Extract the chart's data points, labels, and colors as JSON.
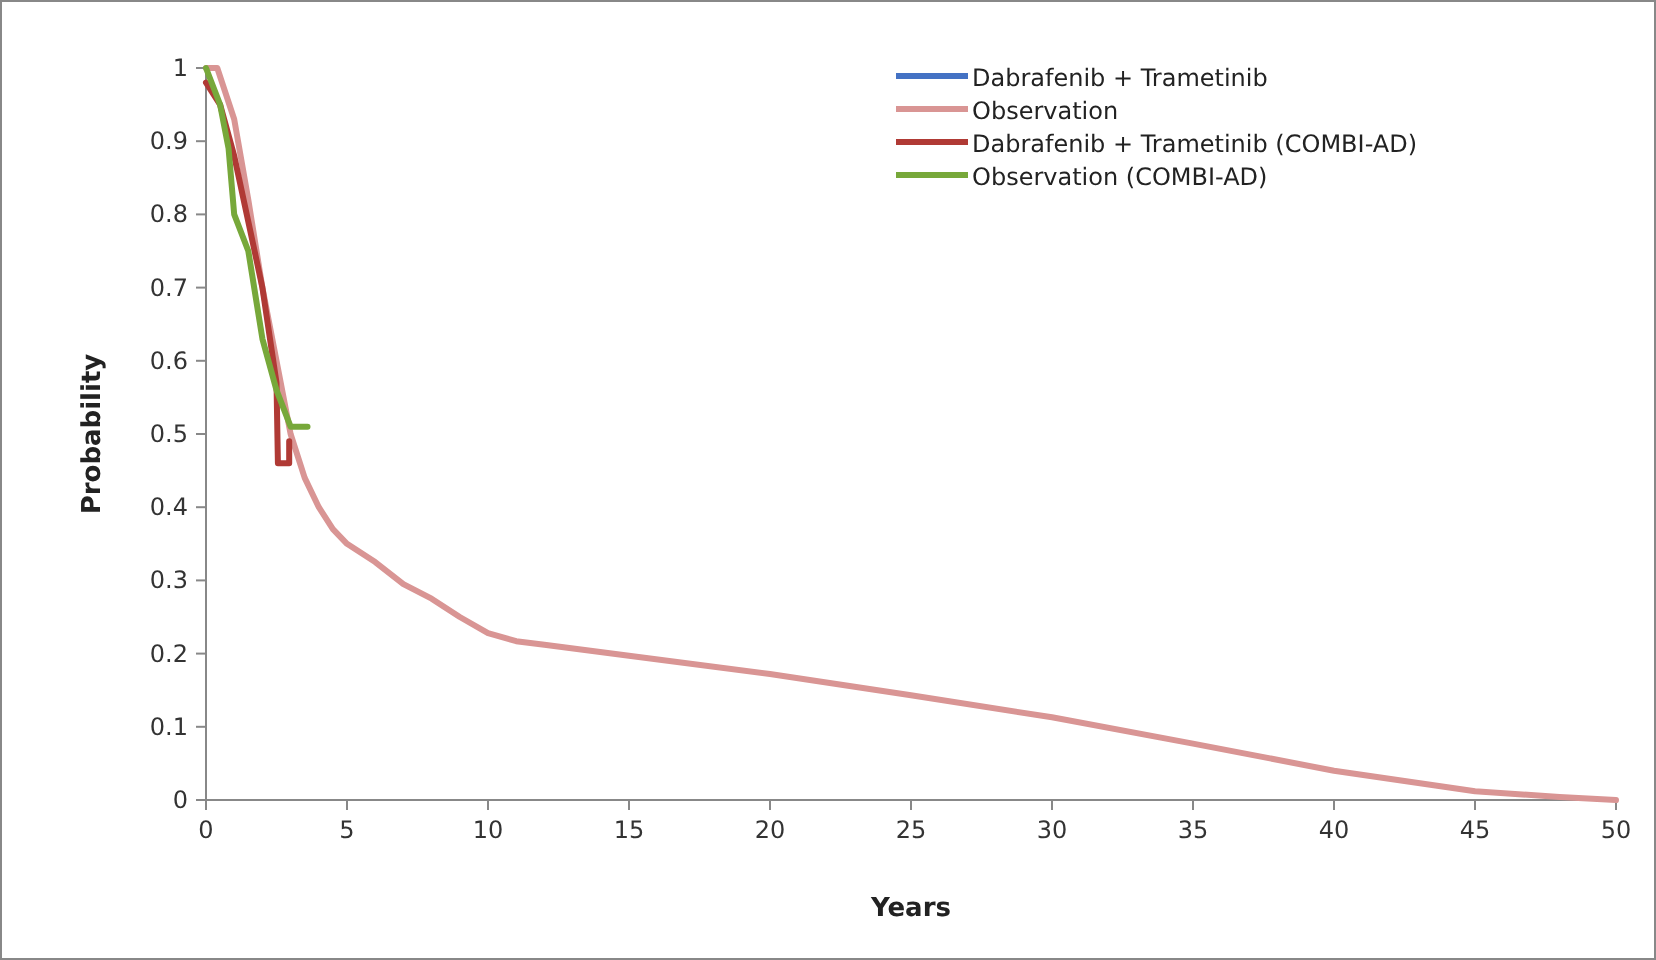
{
  "chart_data": {
    "type": "line",
    "xlabel": "Years",
    "ylabel": "Probability",
    "xlim": [
      0,
      50
    ],
    "ylim": [
      0,
      1
    ],
    "xticks": [
      0,
      5,
      10,
      15,
      20,
      25,
      30,
      35,
      40,
      45,
      50
    ],
    "yticks": [
      0,
      {
        "value": 0.1,
        "label": "0.1"
      },
      {
        "value": 0.2,
        "label": "0.2"
      },
      {
        "value": 0.3,
        "label": "0.3"
      },
      {
        "value": 0.4,
        "label": "0.4"
      },
      {
        "value": 0.5,
        "label": "0.5"
      },
      {
        "value": 0.6,
        "label": "0.6"
      },
      {
        "value": 0.7,
        "label": "0.7"
      },
      {
        "value": 0.8,
        "label": "0.8"
      },
      {
        "value": 0.9,
        "label": "0.9"
      },
      1
    ],
    "grid": false,
    "legend": "top right",
    "line_style": "solid",
    "series": [
      {
        "name": "Dabrafenib + Trametinib",
        "color": "#4472c4"
      },
      {
        "name": "Observation",
        "color": "#d99594",
        "x": [
          0,
          0.4,
          1,
          1.5,
          2,
          2.5,
          3,
          3.5,
          4,
          4.5,
          5,
          6,
          7,
          8,
          9,
          10,
          11,
          12,
          15,
          20,
          25,
          30,
          35,
          40,
          45,
          48,
          50
        ],
        "values": [
          1,
          1,
          0.93,
          0.82,
          0.7,
          0.6,
          0.5,
          0.44,
          0.4,
          0.37,
          0.35,
          0.325,
          0.295,
          0.275,
          0.25,
          0.228,
          0.217,
          0.212,
          0.197,
          0.172,
          0.143,
          0.113,
          0.077,
          0.04,
          0.012,
          0.004,
          0
        ]
      },
      {
        "name": "Dabrafenib + Trametinib (COMBI-AD)",
        "color": "#b03a35",
        "x": [
          0,
          0.5,
          1,
          1.5,
          2,
          2.5,
          2.55,
          2.95,
          2.95
        ],
        "values": [
          0.98,
          0.95,
          0.88,
          0.79,
          0.7,
          0.57,
          0.46,
          0.46,
          0.49
        ]
      },
      {
        "name": "Observation (COMBI-AD)",
        "color": "#77a83a",
        "x": [
          0,
          0.5,
          0.8,
          1,
          1.5,
          2,
          2.5,
          3,
          3.6
        ],
        "values": [
          1,
          0.95,
          0.89,
          0.8,
          0.75,
          0.63,
          0.56,
          0.51,
          0.51
        ]
      }
    ]
  }
}
